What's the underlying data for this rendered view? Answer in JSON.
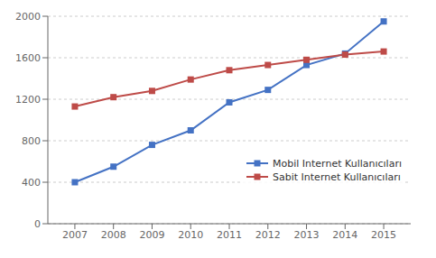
{
  "chart_data": {
    "type": "line",
    "x": [
      2007,
      2008,
      2009,
      2010,
      2011,
      2012,
      2013,
      2014,
      2015
    ],
    "series": [
      {
        "name": "Mobil Internet Kullanıcıları",
        "color": "#4472C4",
        "marker": "square",
        "values": [
          400,
          550,
          760,
          900,
          1170,
          1290,
          1530,
          1640,
          1950
        ]
      },
      {
        "name": "Sabit Internet Kullanıcıları",
        "color": "#BE4B48",
        "marker": "square",
        "values": [
          1130,
          1220,
          1280,
          1390,
          1480,
          1530,
          1580,
          1630,
          1660
        ]
      }
    ],
    "xlim": [
      2006.3,
      2015.7
    ],
    "xticks": [
      2007,
      2008,
      2009,
      2010,
      2011,
      2012,
      2013,
      2014,
      2015
    ],
    "ylim": [
      0,
      2000
    ],
    "yticks": [
      0,
      400,
      800,
      1200,
      1600,
      2000
    ],
    "grid": "y",
    "legend": "lower right"
  }
}
